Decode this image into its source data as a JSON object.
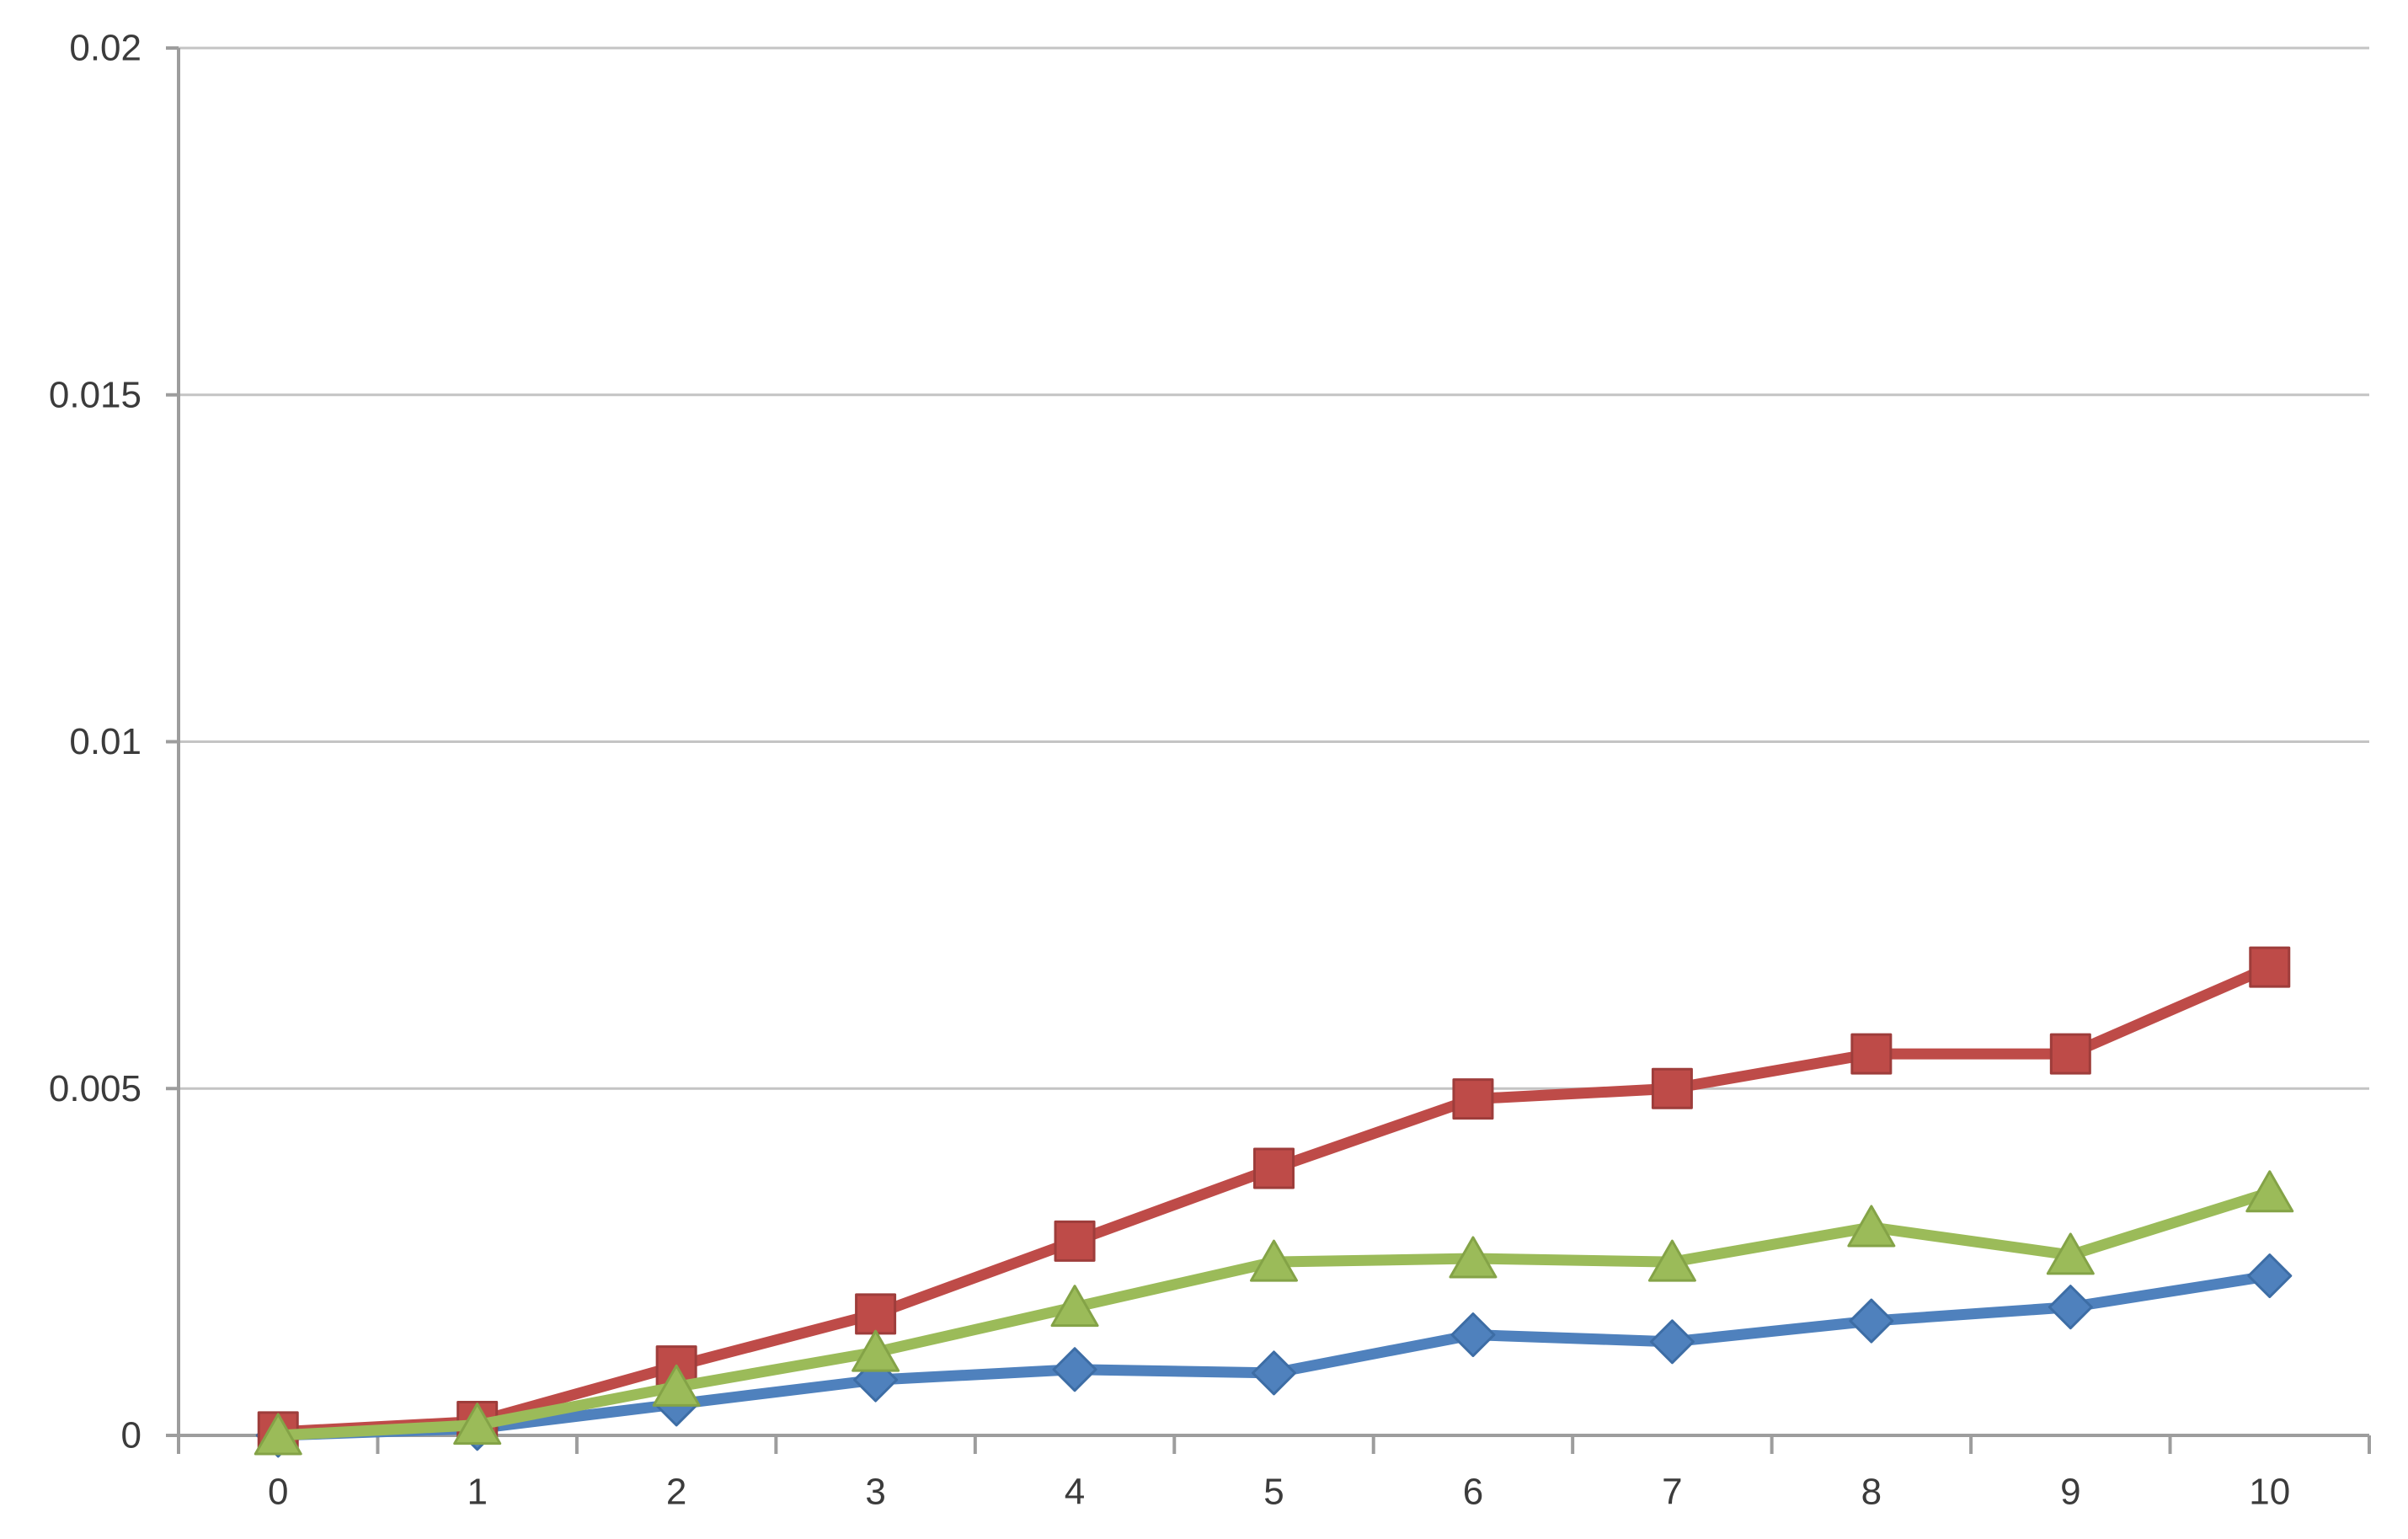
{
  "page": {
    "background": "#ffffff"
  },
  "chart_data": {
    "type": "line",
    "title": "",
    "xlabel": "",
    "ylabel": "",
    "categories": [
      "0",
      "1",
      "2",
      "3",
      "4",
      "5",
      "6",
      "7",
      "8",
      "9",
      "10"
    ],
    "series": [
      {
        "name": "blue-diamond-series",
        "marker": "diamond",
        "color": "#4F81BD",
        "border": "#3D6DA5",
        "values": [
          0,
          0.0001,
          0.00045,
          0.0008,
          0.00095,
          0.0009,
          0.00145,
          0.00135,
          0.00165,
          0.00185,
          0.0023
        ]
      },
      {
        "name": "red-square-series",
        "marker": "square",
        "color": "#BE4B48",
        "border": "#9E3D3B",
        "values": [
          5e-05,
          0.0002,
          0.001,
          0.00175,
          0.0028,
          0.00385,
          0.00485,
          0.005,
          0.0055,
          0.0055,
          0.00675
        ]
      },
      {
        "name": "green-triangle-series",
        "marker": "triangle",
        "color": "#9BBB59",
        "border": "#84A347",
        "values": [
          0,
          0.00015,
          0.0007,
          0.0012,
          0.00185,
          0.0025,
          0.00255,
          0.0025,
          0.003,
          0.0026,
          0.0035
        ]
      }
    ],
    "ylim": [
      0,
      0.02
    ],
    "yticks": [
      {
        "value": 0,
        "label": "0"
      },
      {
        "value": 0.005,
        "label": "0.005"
      },
      {
        "value": 0.01,
        "label": "0.01"
      },
      {
        "value": 0.015,
        "label": "0.015"
      },
      {
        "value": 0.02,
        "label": "0.02"
      }
    ],
    "grid": "horizontal",
    "legend": "none",
    "colors": {
      "gridline": "#C4C4C4",
      "axis": "#9D9D9D",
      "tick_label": "#3B3B3B"
    }
  }
}
